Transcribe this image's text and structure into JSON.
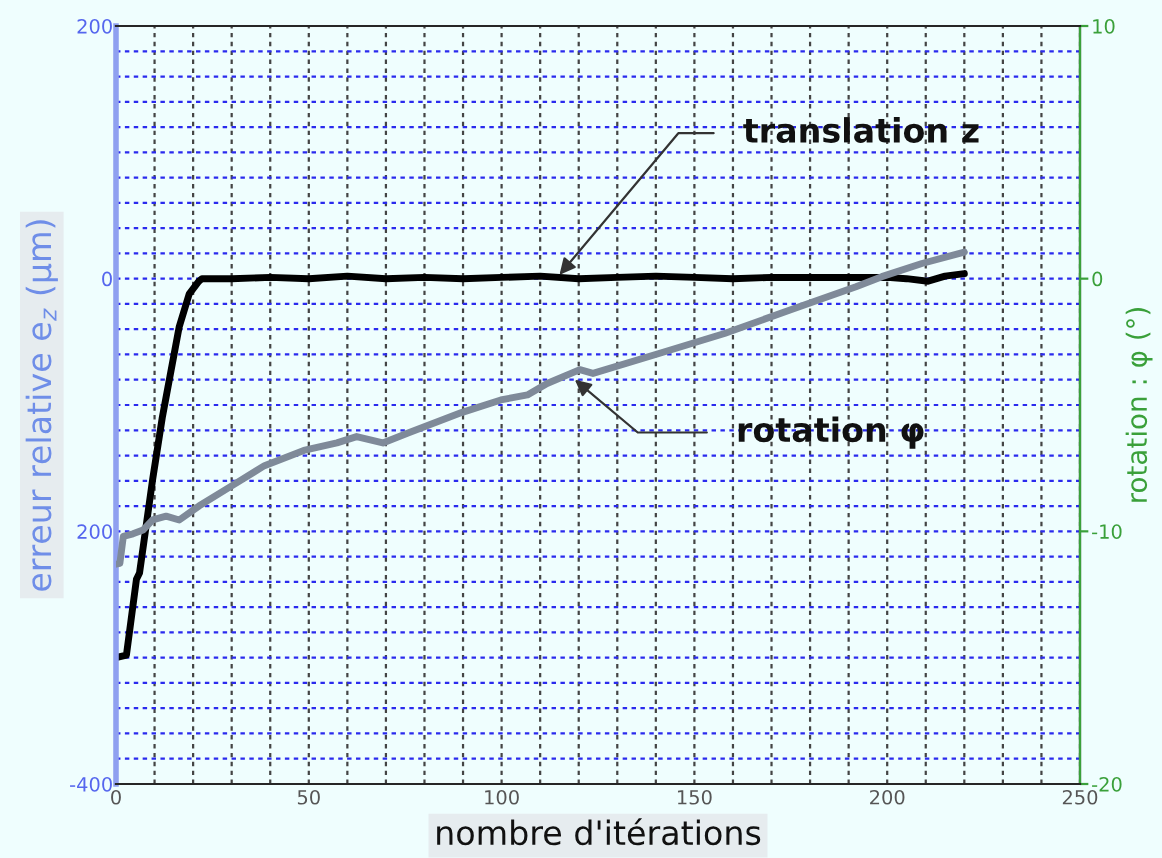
{
  "chart_data": {
    "type": "line",
    "xlabel": "nombre d'itérations",
    "ylabel": "erreur relative e$_{z}$ (µm)",
    "y2label": "rotation : φ (°)",
    "series": [
      {
        "color": "#000000",
        "axis": "y",
        "x": [
          0,
          2.7,
          5.3,
          6.1,
          9.5,
          12,
          16.4,
          19,
          21.5,
          22.3,
          30,
          40,
          50,
          60,
          70,
          80,
          90,
          100,
          110,
          120,
          130,
          140,
          150,
          160,
          170,
          180,
          190,
          200,
          205,
          210.6,
          215,
          220
        ],
        "values": [
          -300,
          -298,
          -238,
          -233,
          -159,
          -110,
          -38,
          -12,
          -2,
          0,
          0,
          1,
          0,
          2,
          0,
          1,
          0,
          1,
          2,
          0,
          1,
          2,
          1,
          0,
          1,
          1,
          1,
          1,
          0,
          -2,
          2,
          4
        ]
      },
      {
        "color": "#7f8a99",
        "axis": "y2",
        "x": [
          0,
          1,
          1.9,
          4.4,
          7,
          9.5,
          13,
          16.4,
          21.5,
          30,
          38.5,
          48.7,
          57.3,
          62.4,
          69.2,
          75.9,
          89.6,
          99.8,
          106.7,
          111.8,
          120.3,
          123.7,
          140.8,
          157.8,
          174.8,
          191.9,
          198.6,
          209,
          220
        ],
        "values": [
          -11.3,
          -11.27,
          -10.2,
          -10.1,
          -9.95,
          -9.55,
          -9.4,
          -9.55,
          -9.0,
          -8.2,
          -7.4,
          -6.8,
          -6.5,
          -6.25,
          -6.5,
          -6.1,
          -5.3,
          -4.8,
          -4.6,
          -4.15,
          -3.6,
          -3.75,
          -2.96,
          -2.17,
          -1.24,
          -0.32,
          0.08,
          0.6,
          1.05
        ]
      }
    ],
    "xlim": [
      0,
      250
    ],
    "xticks": [
      0,
      {
        "value": 10,
        "label": null
      },
      {
        "value": 20,
        "label": null
      },
      {
        "value": 30,
        "label": null
      },
      {
        "value": 40,
        "label": null
      },
      50,
      {
        "value": 60,
        "label": null
      },
      {
        "value": 70,
        "label": null
      },
      {
        "value": 80,
        "label": null
      },
      {
        "value": 90,
        "label": null
      },
      100,
      {
        "value": 110,
        "label": null
      },
      {
        "value": 120,
        "label": null
      },
      {
        "value": 130,
        "label": null
      },
      {
        "value": 140,
        "label": null
      },
      150,
      {
        "value": 160,
        "label": null
      },
      {
        "value": 170,
        "label": null
      },
      {
        "value": 180,
        "label": null
      },
      {
        "value": 190,
        "label": null
      },
      200,
      {
        "value": 210,
        "label": null
      },
      {
        "value": 220,
        "label": null
      },
      {
        "value": 230,
        "label": null
      },
      {
        "value": 240,
        "label": null
      },
      250
    ],
    "ylim": [
      -400,
      200
    ],
    "yticks": [
      -400,
      {
        "value": -380,
        "label": null
      },
      {
        "value": -360,
        "label": null
      },
      {
        "value": -340,
        "label": null
      },
      {
        "value": -320,
        "label": null
      },
      {
        "value": -300,
        "label": null
      },
      {
        "value": -280,
        "label": null
      },
      {
        "value": -260,
        "label": null
      },
      {
        "value": -240,
        "label": null
      },
      {
        "value": -220,
        "label": null
      },
      {
        "value": -200,
        "label": "200"
      },
      {
        "value": -180,
        "label": null
      },
      {
        "value": -160,
        "label": null
      },
      {
        "value": -140,
        "label": null
      },
      {
        "value": -120,
        "label": null
      },
      {
        "value": -100,
        "label": null
      },
      {
        "value": -80,
        "label": null
      },
      {
        "value": -60,
        "label": null
      },
      {
        "value": -40,
        "label": null
      },
      {
        "value": -20,
        "label": null
      },
      0,
      {
        "value": 20,
        "label": null
      },
      {
        "value": 40,
        "label": null
      },
      {
        "value": 60,
        "label": null
      },
      {
        "value": 80,
        "label": null
      },
      {
        "value": 100,
        "label": null
      },
      {
        "value": 120,
        "label": null
      },
      {
        "value": 140,
        "label": null
      },
      {
        "value": 160,
        "label": null
      },
      {
        "value": 180,
        "label": null
      },
      200
    ],
    "y2lim": [
      -20,
      10
    ],
    "y2ticks": [
      -20,
      -10,
      0,
      10
    ],
    "grid": true,
    "line_style": "solid",
    "annotations": [
      {
        "text": "translation z",
        "x": 115,
        "y": 3
      },
      {
        "text": "rotation φ",
        "x": 119,
        "y": -80
      }
    ]
  }
}
